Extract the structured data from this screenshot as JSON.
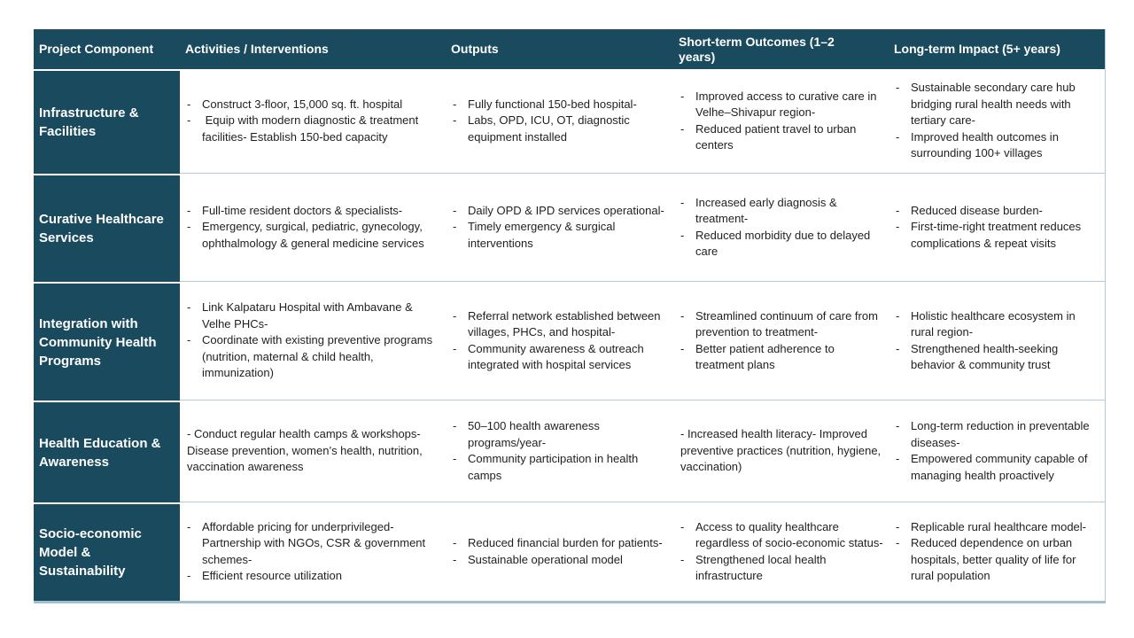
{
  "theme": {
    "teal": "#1a4a5e",
    "header_text_color": "#ffffff",
    "body_text_color": "#1f1f1f",
    "row_border_color": "#b3c9d4",
    "bottom_border_color": "#a3bfcd"
  },
  "table": {
    "columns": [
      "Project Component",
      "Activities / Interventions",
      "Outputs",
      "Short-term Outcomes (1–2 years)",
      "Long-term Impact (5+ years)"
    ],
    "rows": [
      {
        "component": "Infrastructure & Facilities",
        "activities": {
          "items": [
            "Construct 3-floor, 15,000 sq. ft. hospital",
            " Equip with modern diagnostic & treatment facilities- Establish 150-bed capacity"
          ]
        },
        "outputs": {
          "items": [
            "Fully functional 150-bed hospital-",
            "Labs, OPD, ICU, OT, diagnostic equipment installed"
          ]
        },
        "short_term": {
          "items": [
            "Improved access to curative care in Velhe–Shivapur region-",
            "Reduced patient travel to urban centers"
          ]
        },
        "long_term": {
          "items": [
            "Sustainable secondary care hub bridging rural health needs with tertiary care-",
            "Improved health outcomes in surrounding 100+ villages"
          ]
        }
      },
      {
        "component": "Curative Healthcare Services",
        "activities": {
          "items": [
            "Full-time resident doctors & specialists-",
            "Emergency, surgical, pediatric, gynecology, ophthalmology & general medicine services"
          ]
        },
        "outputs": {
          "items": [
            "Daily OPD & IPD services operational-",
            "Timely emergency & surgical interventions"
          ]
        },
        "short_term": {
          "items": [
            "Increased early diagnosis & treatment-",
            "Reduced morbidity due to delayed care"
          ]
        },
        "long_term": {
          "items": [
            "Reduced disease burden-",
            "First-time-right treatment reduces complications & repeat visits"
          ]
        }
      },
      {
        "component": "Integration with Community Health Programs",
        "activities": {
          "items": [
            "Link Kalpataru Hospital with Ambavane & Velhe PHCs-",
            "Coordinate with existing preventive programs (nutrition, maternal & child health, immunization)"
          ]
        },
        "outputs": {
          "items": [
            "Referral network established between villages, PHCs, and hospital-",
            "Community awareness & outreach integrated with hospital services"
          ]
        },
        "short_term": {
          "items": [
            "Streamlined continuum of care from prevention to treatment-",
            "Better patient adherence to treatment plans"
          ]
        },
        "long_term": {
          "items": [
            "Holistic healthcare ecosystem in rural region-",
            "Strengthened health-seeking behavior & community trust"
          ]
        }
      },
      {
        "component": "Health Education & Awareness",
        "activities": {
          "text": "- Conduct regular health camps & workshops- Disease prevention, women’s health, nutrition, vaccination awareness"
        },
        "outputs": {
          "items": [
            "50–100 health awareness programs/year-",
            "Community participation in health camps"
          ]
        },
        "short_term": {
          "text": "- Increased health literacy- Improved preventive practices (nutrition, hygiene, vaccination)"
        },
        "long_term": {
          "items": [
            "Long-term reduction in preventable diseases-",
            "Empowered community capable of managing health proactively"
          ]
        }
      },
      {
        "component": "Socio-economic Model & Sustainability",
        "activities": {
          "items": [
            "Affordable pricing for underprivileged- Partnership with NGOs, CSR & government schemes-",
            "Efficient resource utilization"
          ]
        },
        "outputs": {
          "items": [
            "Reduced financial burden for patients-",
            "Sustainable operational model"
          ]
        },
        "short_term": {
          "items": [
            "Access to quality healthcare regardless of socio-economic status-",
            "Strengthened local health infrastructure"
          ]
        },
        "long_term": {
          "items": [
            "Replicable rural healthcare model-",
            "Reduced dependence on urban hospitals, better quality of life for rural population"
          ]
        }
      }
    ]
  }
}
